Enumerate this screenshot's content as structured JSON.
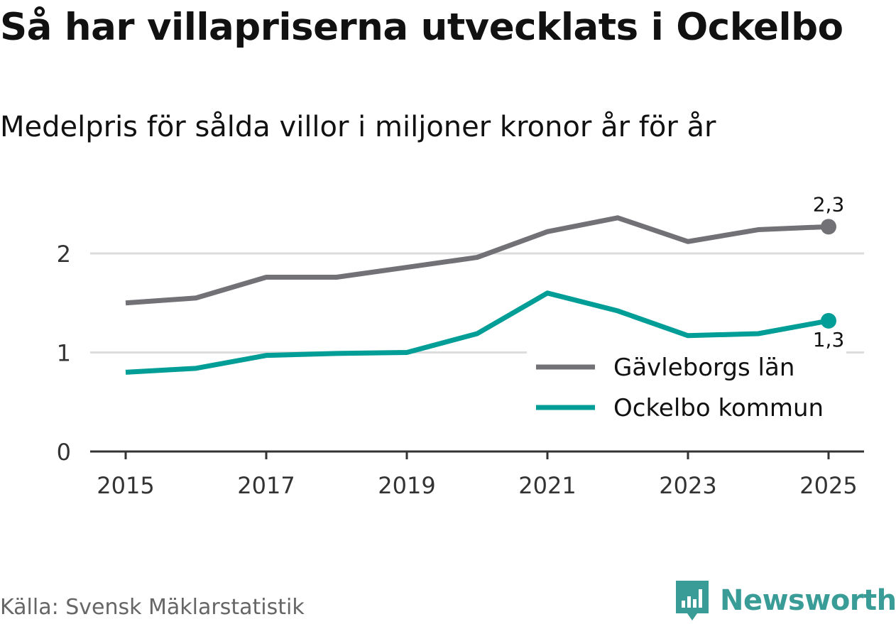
{
  "header": {
    "title": "Så har villapriserna utvecklats i Ockelbo",
    "subtitle": "Medelpris för sålda villor i miljoner kronor år för år"
  },
  "footer": {
    "source": "Källa: Svensk Mäklarstatistik",
    "brand": "Newsworthy",
    "brand_color": "#3a9c96"
  },
  "chart_data": {
    "type": "line",
    "title": "Så har villapriserna utvecklats i Ockelbo",
    "subtitle": "Medelpris för sålda villor i miljoner kronor år för år",
    "xlabel": "",
    "ylabel": "",
    "x": [
      2015,
      2016,
      2017,
      2018,
      2019,
      2020,
      2021,
      2022,
      2023,
      2024,
      2025
    ],
    "x_ticks": [
      "2015",
      "2017",
      "2019",
      "2021",
      "2023",
      "2025"
    ],
    "y_ticks": [
      "0",
      "1",
      "2"
    ],
    "ylim": [
      0,
      2.6
    ],
    "grid": true,
    "legend_position": "bottom-right",
    "series": [
      {
        "name": "Gävleborgs län",
        "color": "#727176",
        "values": [
          1.5,
          1.55,
          1.76,
          1.76,
          1.86,
          1.96,
          2.22,
          2.36,
          2.12,
          2.24,
          2.27
        ],
        "end_label": "2,3"
      },
      {
        "name": "Ockelbo kommun",
        "color": "#009e96",
        "values": [
          0.8,
          0.84,
          0.97,
          0.99,
          1.0,
          1.19,
          1.6,
          1.42,
          1.17,
          1.19,
          1.32
        ],
        "end_label": "1,3"
      }
    ]
  }
}
